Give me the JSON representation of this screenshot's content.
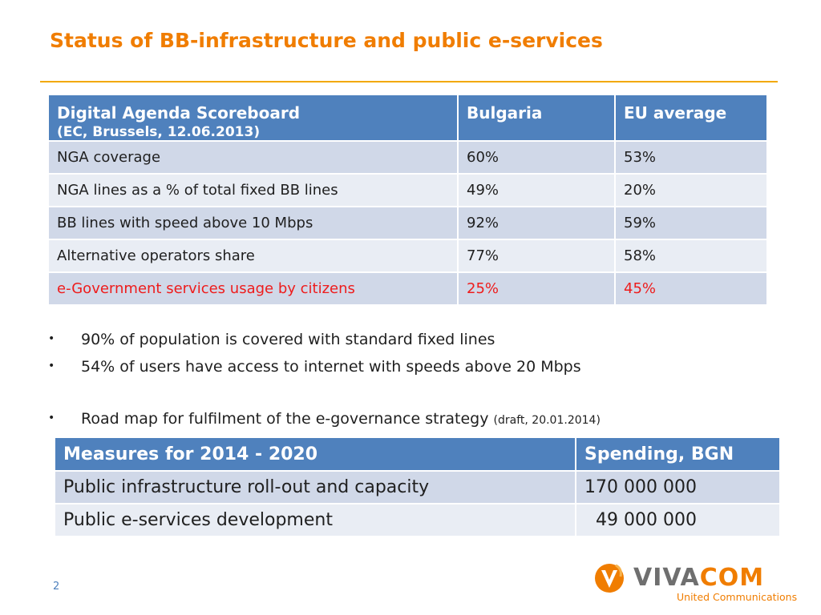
{
  "slide": {
    "title": "Status of BB-infrastructure and public e-services",
    "page_number": "2"
  },
  "scoreboard": {
    "header": {
      "col1_line1": "Digital Agenda Scoreboard",
      "col1_line2": "(EC, Brussels, 12.06.2013)",
      "col2": "Bulgaria",
      "col3": "EU average"
    },
    "rows": [
      {
        "label": "NGA coverage",
        "bulgaria": "60%",
        "eu": "53%"
      },
      {
        "label": "NGA lines as a % of total fixed BB lines",
        "bulgaria": "49%",
        "eu": "20%"
      },
      {
        "label": "BB lines with speed above 10 Mbps",
        "bulgaria": "92%",
        "eu": "59%"
      },
      {
        "label": "Alternative operators share",
        "bulgaria": "77%",
        "eu": "58%"
      },
      {
        "label": "e-Government services usage by citizens",
        "bulgaria": "25%",
        "eu": "45%"
      }
    ]
  },
  "bullets": {
    "marker": "•",
    "b1": "90% of population is covered with standard fixed lines",
    "b2": "54% of users have access to internet with speeds above 20 Mbps",
    "b3": "Road map for fulfilment of the e-governance strategy",
    "b3_note": "(draft, 20.01.2014)"
  },
  "measures": {
    "header": {
      "col1": "Measures for 2014 - 2020",
      "col2": "Spending, BGN"
    },
    "rows": [
      {
        "measure": "Public infrastructure roll-out and capacity",
        "spending": "170 000 000"
      },
      {
        "measure": "Public e-services development",
        "spending": "  49 000 000"
      }
    ]
  },
  "logo": {
    "word_part1": "VIVA",
    "word_part2": "COM",
    "tagline": "United Communications",
    "mark_icon": "vivacom-v-icon"
  },
  "colors": {
    "accent_orange": "#f07d00",
    "table_header_blue": "#4f81bd",
    "row_dark": "#d0d8e8",
    "row_light": "#e9edf4",
    "highlight_red": "#ee1c1c"
  }
}
